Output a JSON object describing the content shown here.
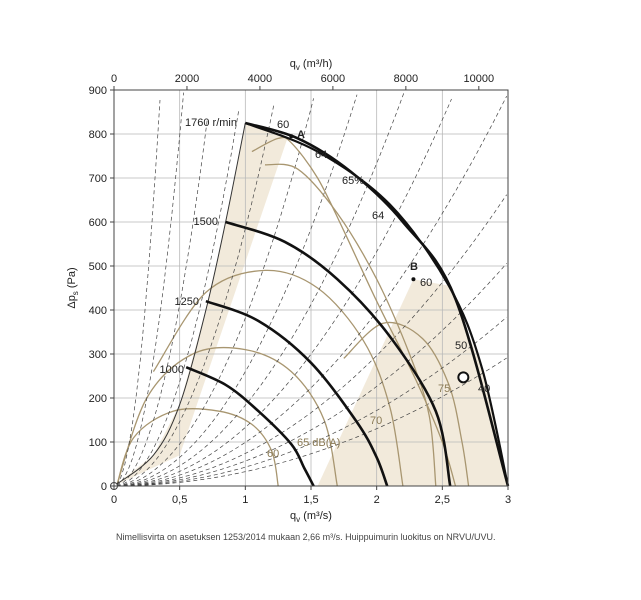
{
  "chart_data": {
    "type": "line",
    "xlabel_bottom_main": "q",
    "xlabel_bottom_sub": "v",
    "xlabel_bottom_unit": " (m³/s)",
    "xlabel_top_main": "q",
    "xlabel_top_sub": "v",
    "xlabel_top_unit": " (m³/h)",
    "ylabel_main": "Δp",
    "ylabel_sub": "s",
    "ylabel_unit": " (Pa)",
    "xlim": [
      0,
      3
    ],
    "ylim": [
      0,
      900
    ],
    "xlim_top": [
      0,
      10800
    ],
    "x_ticks": [
      0,
      0.5,
      1,
      1.5,
      2,
      2.5,
      3
    ],
    "x_tick_labels": [
      "0",
      "0,5",
      "1",
      "1,5",
      "2",
      "2,5",
      "3"
    ],
    "x_top_ticks": [
      0,
      2000,
      4000,
      6000,
      8000,
      10000
    ],
    "x_top_tick_labels": [
      "0",
      "2000",
      "4000",
      "6000",
      "8000",
      "10000"
    ],
    "y_ticks": [
      0,
      100,
      200,
      300,
      400,
      500,
      600,
      700,
      800,
      900
    ],
    "y_tick_labels": [
      "0",
      "100",
      "200",
      "300",
      "400",
      "500",
      "600",
      "700",
      "800",
      "900"
    ],
    "grid": true,
    "speed_curves": [
      {
        "label": "1760 r/min",
        "points": [
          [
            1.0,
            825
          ],
          [
            1.4,
            790
          ],
          [
            1.8,
            715
          ],
          [
            2.2,
            600
          ],
          [
            2.6,
            425
          ],
          [
            3.0,
            0
          ]
        ]
      },
      {
        "label": "1500",
        "points": [
          [
            0.85,
            600
          ],
          [
            1.3,
            555
          ],
          [
            1.7,
            470
          ],
          [
            2.1,
            340
          ],
          [
            2.45,
            170
          ],
          [
            2.56,
            0
          ]
        ]
      },
      {
        "label": "1250",
        "points": [
          [
            0.7,
            420
          ],
          [
            1.1,
            375
          ],
          [
            1.5,
            280
          ],
          [
            1.85,
            145
          ],
          [
            2.0,
            65
          ],
          [
            2.08,
            0
          ]
        ]
      },
      {
        "label": "1000",
        "points": [
          [
            0.55,
            270
          ],
          [
            0.85,
            230
          ],
          [
            1.1,
            170
          ],
          [
            1.35,
            95
          ],
          [
            1.45,
            40
          ],
          [
            1.52,
            0
          ]
        ]
      }
    ],
    "boundary_curves": [
      {
        "name": "left",
        "points": [
          [
            0.0,
            0
          ],
          [
            0.3,
            70
          ],
          [
            0.5,
            185
          ],
          [
            0.7,
            400
          ],
          [
            0.85,
            600
          ],
          [
            1.0,
            825
          ]
        ]
      },
      {
        "name": "right",
        "points": [
          [
            1.0,
            825
          ],
          [
            1.55,
            760
          ],
          [
            2.1,
            640
          ],
          [
            2.55,
            455
          ],
          [
            2.8,
            270
          ],
          [
            3.0,
            0
          ]
        ]
      }
    ],
    "efficiency_labels": [
      "60",
      "64",
      "65%",
      "64",
      "60",
      "50",
      "40"
    ],
    "sound_labels": [
      "60",
      "65 dB(A)",
      "70",
      "75"
    ],
    "efficiency_curves": [
      {
        "label": "60",
        "points": [
          [
            1.05,
            760
          ],
          [
            1.25,
            790
          ],
          [
            1.35,
            780
          ],
          [
            1.55,
            700
          ],
          [
            1.75,
            580
          ],
          [
            2.0,
            420
          ],
          [
            2.3,
            240
          ],
          [
            2.5,
            100
          ],
          [
            2.6,
            0
          ]
        ]
      },
      {
        "label": "64",
        "points": [
          [
            1.15,
            730
          ],
          [
            1.4,
            720
          ],
          [
            1.7,
            620
          ],
          [
            2.0,
            470
          ],
          [
            2.25,
            300
          ],
          [
            2.4,
            160
          ],
          [
            2.45,
            0
          ]
        ]
      }
    ],
    "sound_curves": [
      {
        "label": "60",
        "points": [
          [
            0.02,
            0
          ],
          [
            0.15,
            110
          ],
          [
            0.45,
            170
          ],
          [
            0.8,
            170
          ],
          [
            1.05,
            140
          ],
          [
            1.2,
            80
          ],
          [
            1.25,
            0
          ]
        ]
      },
      {
        "label": "65 dB(A)",
        "points": [
          [
            0.02,
            0
          ],
          [
            0.25,
            200
          ],
          [
            0.6,
            300
          ],
          [
            1.0,
            310
          ],
          [
            1.35,
            260
          ],
          [
            1.6,
            150
          ],
          [
            1.7,
            0
          ]
        ]
      },
      {
        "label": "70",
        "points": [
          [
            0.3,
            260
          ],
          [
            0.7,
            440
          ],
          [
            1.15,
            490
          ],
          [
            1.55,
            450
          ],
          [
            1.9,
            330
          ],
          [
            2.1,
            180
          ],
          [
            2.2,
            0
          ]
        ]
      },
      {
        "label": "75",
        "points": [
          [
            1.75,
            290
          ],
          [
            2.05,
            370
          ],
          [
            2.35,
            335
          ],
          [
            2.55,
            230
          ],
          [
            2.65,
            100
          ],
          [
            2.7,
            0
          ]
        ]
      }
    ],
    "system_lines": [
      0.12,
      0.18,
      0.25,
      0.33,
      0.42,
      0.52,
      0.63,
      0.75,
      0.88,
      1.02,
      1.18,
      1.35,
      1.55,
      1.78
    ],
    "points": [
      {
        "label": "A",
        "x": 1.35,
        "y": 795
      },
      {
        "label": "B",
        "x": 2.28,
        "y": 470
      },
      {
        "label": "",
        "x": 2.66,
        "y": 247
      }
    ]
  },
  "footnote": "Nimellisvirta on asetuksen 1253/2014 mukaan 2,66 m³/s. Huippuimurin luokitus on NRVU/UVU."
}
